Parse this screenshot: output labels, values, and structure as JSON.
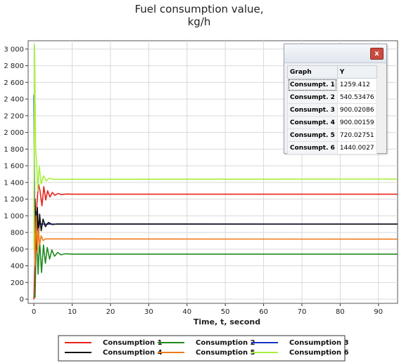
{
  "chart_data": {
    "type": "line",
    "title": "Fuel consumption value,\nkg/h",
    "xlabel": "Time, t, second",
    "ylabel": "",
    "xlim": [
      -1.5,
      95
    ],
    "ylim": [
      -50,
      3100
    ],
    "xticks": [
      0,
      10,
      20,
      30,
      40,
      50,
      60,
      70,
      80,
      90
    ],
    "yticks": [
      0,
      200,
      400,
      600,
      800,
      1000,
      1200,
      1400,
      1600,
      1800,
      2000,
      2200,
      2400,
      2600,
      2800,
      3000
    ],
    "ytick_labels": [
      "0",
      "200",
      "400",
      "600",
      "800",
      "1 000",
      "1 200",
      "1 400",
      "1 600",
      "1 800",
      "2 000",
      "2 200",
      "2 400",
      "2 600",
      "2 800",
      "3 000"
    ],
    "grid": true,
    "legend_position": "bottom",
    "series": [
      {
        "name": "Consumption 1",
        "color": "#e8231b",
        "steady": 1259.412,
        "x": [
          0,
          0.4,
          0.8,
          1.2,
          1.6,
          2.1,
          2.6,
          3.1,
          3.6,
          4.2,
          4.8,
          5.5,
          6.3,
          7.2,
          8.5,
          10,
          95
        ],
        "y": [
          0,
          600,
          1150,
          1380,
          1300,
          1120,
          1350,
          1190,
          1300,
          1225,
          1280,
          1245,
          1268,
          1255,
          1261,
          1259,
          1259
        ]
      },
      {
        "name": "Consumption 2",
        "color": "#1f8a1f",
        "steady": 540.53476,
        "x": [
          0,
          0.3,
          0.7,
          1.1,
          1.5,
          2.0,
          2.5,
          3.0,
          3.5,
          4.1,
          4.7,
          5.4,
          6.2,
          7.1,
          8.3,
          10,
          95
        ],
        "y": [
          50,
          20,
          900,
          300,
          700,
          320,
          650,
          430,
          620,
          480,
          590,
          515,
          560,
          532,
          545,
          540,
          540
        ]
      },
      {
        "name": "Consumption 3",
        "color": "#1a32c8",
        "steady": 900.02086,
        "x": [
          0,
          0.2,
          0.4,
          0.6,
          0.8,
          1.0,
          1.3,
          1.6,
          2.0,
          95
        ],
        "y": [
          2450,
          1200,
          650,
          1050,
          820,
          950,
          880,
          910,
          900,
          900
        ]
      },
      {
        "name": "Consumption 4",
        "color": "#111111",
        "steady": 900.00159,
        "x": [
          0,
          0.3,
          0.6,
          0.9,
          1.2,
          1.5,
          1.9,
          2.4,
          3.0,
          3.8,
          4.8,
          6,
          95
        ],
        "y": [
          900,
          1200,
          600,
          1100,
          750,
          1020,
          820,
          960,
          870,
          920,
          895,
          902,
          900
        ]
      },
      {
        "name": "Consumption 5",
        "color": "#f07a1a",
        "steady": 720.02751,
        "x": [
          0,
          0.3,
          0.6,
          0.9,
          1.2,
          1.5,
          1.9,
          2.4,
          3.0,
          95
        ],
        "y": [
          1300,
          400,
          1000,
          550,
          850,
          650,
          760,
          705,
          722,
          720
        ]
      },
      {
        "name": "Consumption 6",
        "color": "#a8f03c",
        "steady": 1440.0027,
        "x": [
          0,
          0.2,
          0.45,
          0.7,
          1.0,
          1.4,
          1.9,
          2.5,
          3.2,
          4.0,
          5.0,
          95
        ],
        "y": [
          600,
          3050,
          1800,
          1650,
          1300,
          1600,
          1380,
          1480,
          1420,
          1450,
          1438,
          1440
        ]
      }
    ]
  },
  "value_window": {
    "close_label": "x",
    "headers": {
      "graph": "Graph",
      "y": "Y"
    },
    "rows": [
      {
        "graph": "Consumpt. 1",
        "y": "1259.412"
      },
      {
        "graph": "Consumpt. 2",
        "y": "540.53476"
      },
      {
        "graph": "Consumpt. 3",
        "y": "900.02086"
      },
      {
        "graph": "Consumpt. 4",
        "y": "900.00159"
      },
      {
        "graph": "Consumpt. 5",
        "y": "720.02751"
      },
      {
        "graph": "Consumpt. 6",
        "y": "1440.0027"
      }
    ]
  }
}
